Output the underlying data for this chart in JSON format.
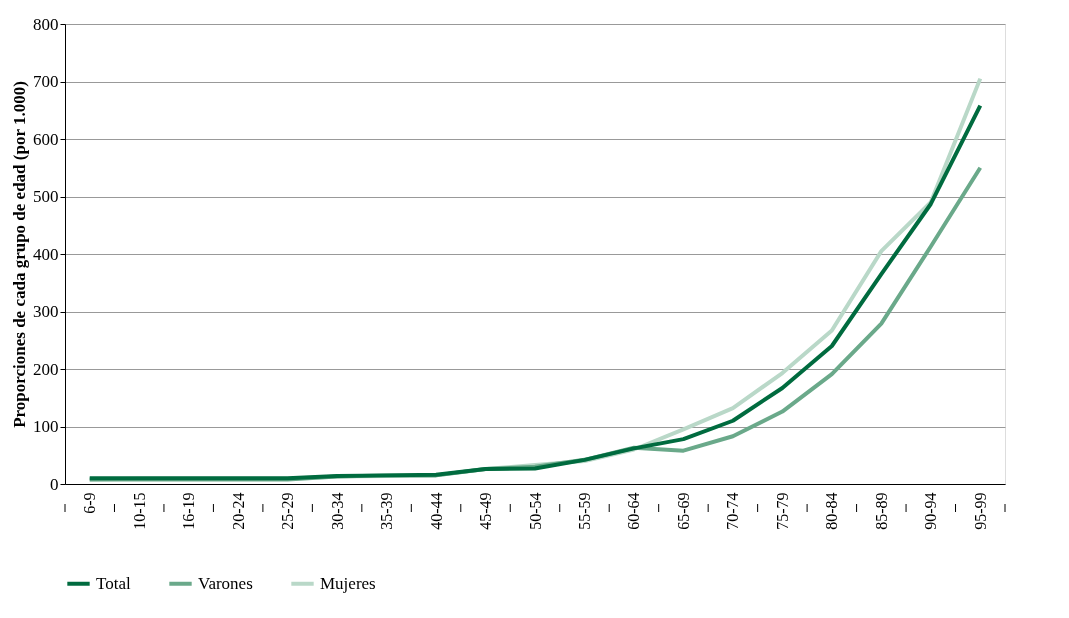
{
  "chart_data": {
    "type": "line",
    "ylabel": "Proporciones de cada grupo de edad (por 1.000)",
    "categories": [
      "6-9",
      "10-15",
      "16-19",
      "20-24",
      "25-29",
      "30-34",
      "35-39",
      "40-44",
      "45-49",
      "50-54",
      "55-59",
      "60-64",
      "65-69",
      "70-74",
      "75-79",
      "80-84",
      "85-89",
      "90-94",
      "95-99"
    ],
    "series": [
      {
        "name": "Mujeres",
        "color": "#b9d8c8",
        "values": [
          8,
          9,
          9,
          9,
          9,
          13,
          14,
          15,
          26,
          33,
          40,
          60,
          95,
          132,
          193,
          267,
          405,
          490,
          705
        ]
      },
      {
        "name": "Varones",
        "color": "#6aa98a",
        "values": [
          8,
          8,
          8,
          8,
          8,
          13,
          15,
          15,
          26,
          30,
          42,
          63,
          58,
          83,
          126,
          191,
          279,
          413,
          550
        ]
      },
      {
        "name": "Total",
        "color": "#006b3f",
        "values": [
          10,
          10,
          10,
          10,
          10,
          14,
          15,
          16,
          26,
          27,
          42,
          62,
          78,
          110,
          167,
          240,
          365,
          487,
          658
        ]
      }
    ],
    "ylim": [
      0,
      800
    ],
    "yticks": [
      0,
      100,
      200,
      300,
      400,
      500,
      600,
      700,
      800
    ],
    "grid": "y",
    "legend": "bottom",
    "marker": "none",
    "line_style": "solid"
  }
}
